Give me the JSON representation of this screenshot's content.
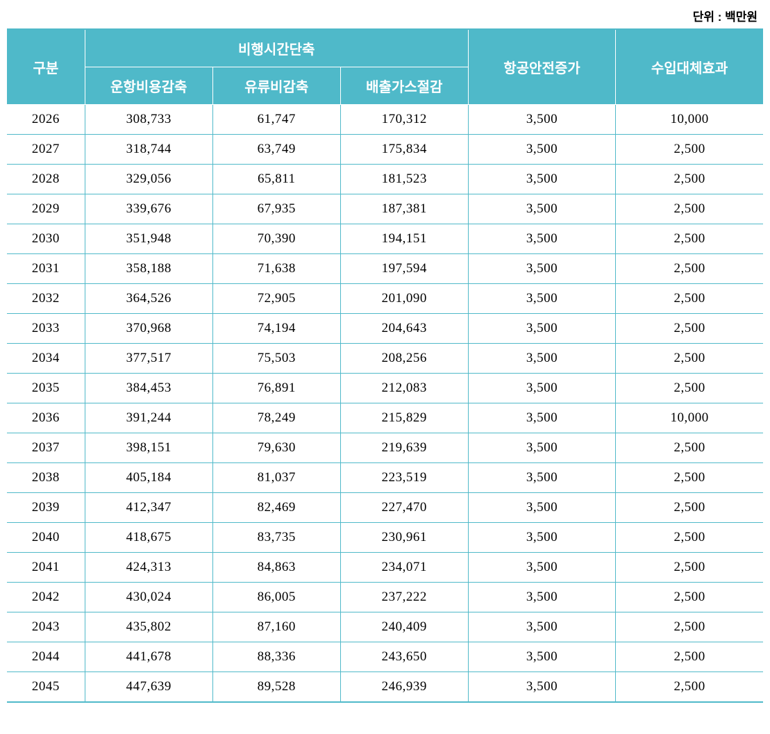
{
  "unit_label": "단위 : 백만원",
  "table": {
    "type": "table",
    "background_color": "#ffffff",
    "header_bg_color": "#4fb9c9",
    "header_text_color": "#ffffff",
    "border_color": "#4fb9c9",
    "cell_text_color": "#000000",
    "header_fontsize": 20,
    "cell_fontsize": 19,
    "columns": {
      "group_label": "비행시간단축",
      "col0": "구분",
      "col1": "운항비용감축",
      "col2": "유류비감축",
      "col3": "배출가스절감",
      "col4": "항공안전증가",
      "col5": "수입대체효과"
    },
    "rows": [
      {
        "year": "2026",
        "c1": "308,733",
        "c2": "61,747",
        "c3": "170,312",
        "c4": "3,500",
        "c5": "10,000"
      },
      {
        "year": "2027",
        "c1": "318,744",
        "c2": "63,749",
        "c3": "175,834",
        "c4": "3,500",
        "c5": "2,500"
      },
      {
        "year": "2028",
        "c1": "329,056",
        "c2": "65,811",
        "c3": "181,523",
        "c4": "3,500",
        "c5": "2,500"
      },
      {
        "year": "2029",
        "c1": "339,676",
        "c2": "67,935",
        "c3": "187,381",
        "c4": "3,500",
        "c5": "2,500"
      },
      {
        "year": "2030",
        "c1": "351,948",
        "c2": "70,390",
        "c3": "194,151",
        "c4": "3,500",
        "c5": "2,500"
      },
      {
        "year": "2031",
        "c1": "358,188",
        "c2": "71,638",
        "c3": "197,594",
        "c4": "3,500",
        "c5": "2,500"
      },
      {
        "year": "2032",
        "c1": "364,526",
        "c2": "72,905",
        "c3": "201,090",
        "c4": "3,500",
        "c5": "2,500"
      },
      {
        "year": "2033",
        "c1": "370,968",
        "c2": "74,194",
        "c3": "204,643",
        "c4": "3,500",
        "c5": "2,500"
      },
      {
        "year": "2034",
        "c1": "377,517",
        "c2": "75,503",
        "c3": "208,256",
        "c4": "3,500",
        "c5": "2,500"
      },
      {
        "year": "2035",
        "c1": "384,453",
        "c2": "76,891",
        "c3": "212,083",
        "c4": "3,500",
        "c5": "2,500"
      },
      {
        "year": "2036",
        "c1": "391,244",
        "c2": "78,249",
        "c3": "215,829",
        "c4": "3,500",
        "c5": "10,000"
      },
      {
        "year": "2037",
        "c1": "398,151",
        "c2": "79,630",
        "c3": "219,639",
        "c4": "3,500",
        "c5": "2,500"
      },
      {
        "year": "2038",
        "c1": "405,184",
        "c2": "81,037",
        "c3": "223,519",
        "c4": "3,500",
        "c5": "2,500"
      },
      {
        "year": "2039",
        "c1": "412,347",
        "c2": "82,469",
        "c3": "227,470",
        "c4": "3,500",
        "c5": "2,500"
      },
      {
        "year": "2040",
        "c1": "418,675",
        "c2": "83,735",
        "c3": "230,961",
        "c4": "3,500",
        "c5": "2,500"
      },
      {
        "year": "2041",
        "c1": "424,313",
        "c2": "84,863",
        "c3": "234,071",
        "c4": "3,500",
        "c5": "2,500"
      },
      {
        "year": "2042",
        "c1": "430,024",
        "c2": "86,005",
        "c3": "237,222",
        "c4": "3,500",
        "c5": "2,500"
      },
      {
        "year": "2043",
        "c1": "435,802",
        "c2": "87,160",
        "c3": "240,409",
        "c4": "3,500",
        "c5": "2,500"
      },
      {
        "year": "2044",
        "c1": "441,678",
        "c2": "88,336",
        "c3": "243,650",
        "c4": "3,500",
        "c5": "2,500"
      },
      {
        "year": "2045",
        "c1": "447,639",
        "c2": "89,528",
        "c3": "246,939",
        "c4": "3,500",
        "c5": "2,500"
      }
    ]
  }
}
